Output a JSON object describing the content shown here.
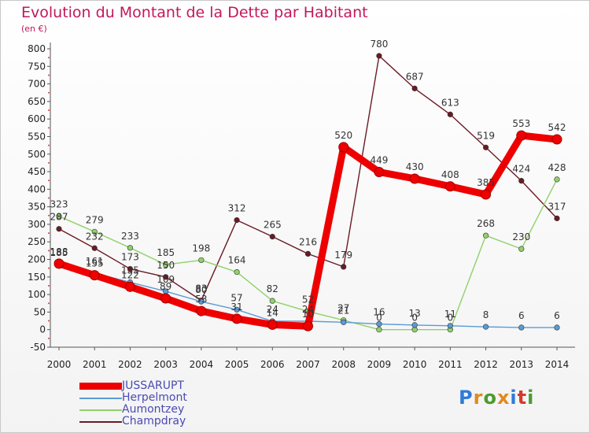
{
  "title": "Evolution du Montant de la Dette par Habitant",
  "unit_label": "(en €)",
  "logo": {
    "text": "Proxiti",
    "colors": [
      "#2f7bd6",
      "#e08a1e",
      "#4a9c2d",
      "#e08a1e",
      "#2f7bd6",
      "#d23b2b",
      "#4a9c2d"
    ]
  },
  "chart_data": {
    "type": "line",
    "title": "Evolution du Montant de la Dette par Habitant",
    "ylabel": "(en €)",
    "xlabel": "",
    "categories": [
      "2000",
      "2001",
      "2002",
      "2003",
      "2004",
      "2005",
      "2006",
      "2007",
      "2008",
      "2009",
      "2010",
      "2011",
      "2012",
      "2013",
      "2014"
    ],
    "ylim": [
      -50,
      800
    ],
    "yticks": [
      -50,
      0,
      50,
      100,
      150,
      200,
      250,
      300,
      350,
      400,
      450,
      500,
      550,
      600,
      650,
      700,
      750,
      800
    ],
    "grid": false,
    "legend_position": "bottom-left",
    "series": [
      {
        "name": "JUSSARUPT",
        "color": "#ee0000",
        "values": [
          188,
          155,
          122,
          89,
          53,
          31,
          14,
          10,
          520,
          449,
          430,
          408,
          385,
          553,
          542
        ]
      },
      {
        "name": "Herpelmont",
        "color": "#5a9bd5",
        "values": [
          185,
          161,
          135,
          109,
          80,
          57,
          24,
          24,
          21,
          16,
          13,
          11,
          8,
          6,
          6
        ]
      },
      {
        "name": "Aumontzey",
        "color": "#8fd16a",
        "values": [
          323,
          279,
          233,
          185,
          198,
          164,
          82,
          52,
          27,
          0,
          0,
          0,
          268,
          230,
          428
        ]
      },
      {
        "name": "Champdray",
        "color": "#6b1a24",
        "values": [
          287,
          232,
          173,
          150,
          83,
          312,
          265,
          216,
          179,
          780,
          687,
          613,
          519,
          424,
          317
        ]
      }
    ]
  }
}
